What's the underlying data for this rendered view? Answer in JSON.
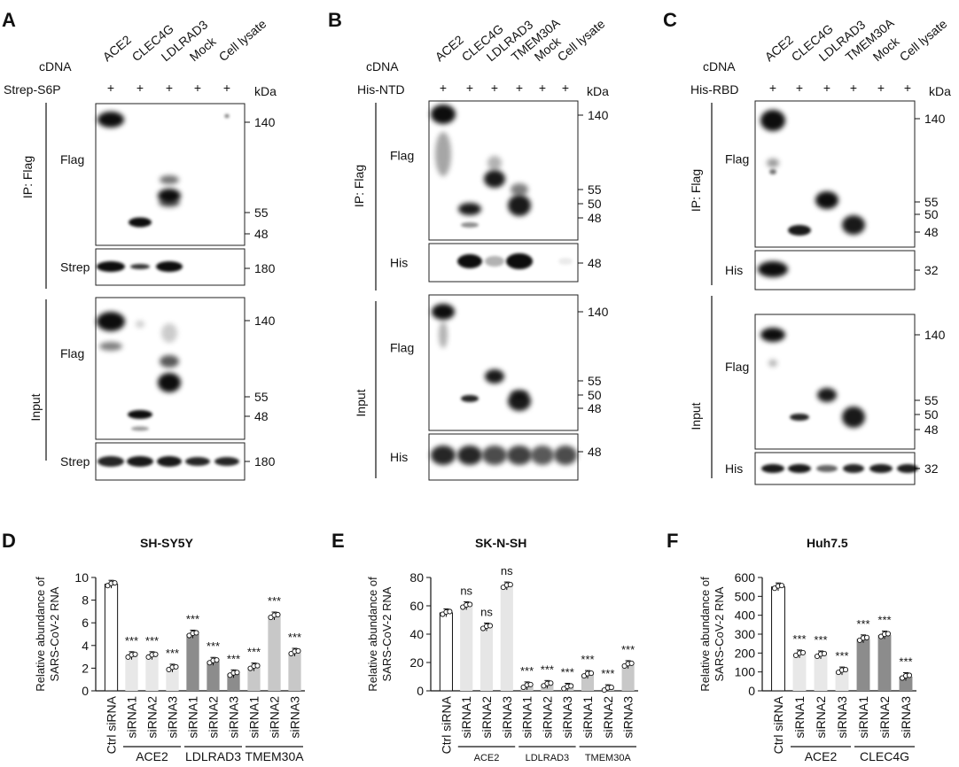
{
  "panels": {
    "A": {
      "letter": "A",
      "cdna_label": "cDNA",
      "bait_label": "Strep-S6P",
      "kda": "kDa",
      "lanes": [
        "ACE2",
        "CLEC4G",
        "LDLRAD3",
        "Mock",
        "Cell lysate"
      ],
      "plus": [
        "+",
        "+",
        "+",
        "+",
        "+"
      ],
      "ip_label": "IP: Flag",
      "input_label": "Input",
      "blots": [
        {
          "label": "Flag",
          "markers": [
            "140",
            "55",
            "48"
          ]
        },
        {
          "label": "Strep",
          "markers": [
            "180"
          ]
        },
        {
          "label": "Flag",
          "markers": [
            "140",
            "55",
            "48"
          ]
        },
        {
          "label": "Strep",
          "markers": [
            "180"
          ]
        }
      ]
    },
    "B": {
      "letter": "B",
      "cdna_label": "cDNA",
      "bait_label": "His-NTD",
      "kda": "kDa",
      "lanes": [
        "ACE2",
        "CLEC4G",
        "LDLRAD3",
        "TMEM30A",
        "Mock",
        "Cell lysate"
      ],
      "plus": [
        "+",
        "+",
        "+",
        "+",
        "+",
        "+"
      ],
      "ip_label": "IP: Flag",
      "input_label": "Input",
      "blots": [
        {
          "label": "Flag",
          "markers": [
            "140",
            "55",
            "50",
            "48"
          ]
        },
        {
          "label": "His",
          "markers": [
            "48"
          ]
        },
        {
          "label": "Flag",
          "markers": [
            "140",
            "55",
            "50",
            "48"
          ]
        },
        {
          "label": "His",
          "markers": [
            "48"
          ]
        }
      ]
    },
    "C": {
      "letter": "C",
      "cdna_label": "cDNA",
      "bait_label": "His-RBD",
      "kda": "kDa",
      "lanes": [
        "ACE2",
        "CLEC4G",
        "LDLRAD3",
        "TMEM30A",
        "Mock",
        "Cell lysate"
      ],
      "plus": [
        "+",
        "+",
        "+",
        "+",
        "+",
        "+"
      ],
      "ip_label": "IP: Flag",
      "input_label": "Input",
      "blots": [
        {
          "label": "Flag",
          "markers": [
            "140",
            "55",
            "50",
            "48"
          ]
        },
        {
          "label": "His",
          "markers": [
            "32"
          ]
        },
        {
          "label": "Flag",
          "markers": [
            "140",
            "55",
            "50",
            "48"
          ]
        },
        {
          "label": "His",
          "markers": [
            "32"
          ]
        }
      ]
    }
  },
  "chart_data": [
    {
      "letter": "D",
      "type": "bar",
      "title": "SH-SY5Y",
      "ylabel_line1": "Relative abundance of",
      "ylabel_line2": "SARS-CoV-2 RNA",
      "ylim": [
        0,
        10
      ],
      "yticks": [
        "0",
        "2",
        "4",
        "6",
        "8",
        "10"
      ],
      "categories": [
        "Ctrl siRNA",
        "siRNA1",
        "siRNA2",
        "siRNA3",
        "siRNA1",
        "siRNA2",
        "siRNA3",
        "siRNA1",
        "siRNA2",
        "siRNA3"
      ],
      "values": [
        9.4,
        3.1,
        3.1,
        2.0,
        5.0,
        2.6,
        1.5,
        2.1,
        6.6,
        3.4
      ],
      "colors": [
        "#ffffff",
        "#e8e8e8",
        "#e8e8e8",
        "#e8e8e8",
        "#8c8c8c",
        "#8c8c8c",
        "#8c8c8c",
        "#c8c8c8",
        "#c8c8c8",
        "#c8c8c8"
      ],
      "significance": [
        "",
        "***",
        "***",
        "***",
        "***",
        "***",
        "***",
        "***",
        "***",
        "***"
      ],
      "groups": [
        {
          "name": "ACE2",
          "from": 1,
          "to": 3
        },
        {
          "name": "LDLRAD3",
          "from": 4,
          "to": 6
        },
        {
          "name": "TMEM30A",
          "from": 7,
          "to": 9
        }
      ]
    },
    {
      "letter": "E",
      "type": "bar",
      "title": "SK-N-SH",
      "ylabel_line1": "Relative abundance of",
      "ylabel_line2": "SARS-CoV-2 RNA",
      "ylim": [
        0,
        80
      ],
      "yticks": [
        "0",
        "20",
        "40",
        "60",
        "80"
      ],
      "categories": [
        "Ctrl siRNA",
        "siRNA1",
        "siRNA2",
        "siRNA3",
        "siRNA1",
        "siRNA2",
        "siRNA3",
        "siRNA1",
        "siRNA2",
        "siRNA3"
      ],
      "values": [
        55,
        60,
        45,
        74,
        3.5,
        4.5,
        2.5,
        11.5,
        1.5,
        18.5
      ],
      "colors": [
        "#ffffff",
        "#e6e6e6",
        "#e6e6e6",
        "#e6e6e6",
        "#c8c8c8",
        "#c8c8c8",
        "#c8c8c8",
        "#c8c8c8",
        "#c8c8c8",
        "#c8c8c8"
      ],
      "significance": [
        "",
        "ns",
        "ns",
        "ns",
        "***",
        "***",
        "***",
        "***",
        "***",
        "***"
      ],
      "groups": [
        {
          "name": "ACE2",
          "from": 1,
          "to": 3
        },
        {
          "name": "LDLRAD3",
          "from": 4,
          "to": 6
        },
        {
          "name": "TMEM30A",
          "from": 7,
          "to": 9
        }
      ]
    },
    {
      "letter": "F",
      "type": "bar",
      "title": "Huh7.5",
      "ylabel_line1": "Relative abundance of",
      "ylabel_line2": "SARS-CoV-2 RNA",
      "ylim": [
        0,
        600
      ],
      "yticks": [
        "0",
        "100",
        "200",
        "300",
        "400",
        "500",
        "600"
      ],
      "categories": [
        "Ctrl siRNA",
        "siRNA1",
        "siRNA2",
        "siRNA3",
        "siRNA1",
        "siRNA2",
        "siRNA3"
      ],
      "values": [
        550,
        195,
        190,
        105,
        275,
        295,
        75
      ],
      "colors": [
        "#ffffff",
        "#e8e8e8",
        "#e8e8e8",
        "#e8e8e8",
        "#8c8c8c",
        "#8c8c8c",
        "#8c8c8c"
      ],
      "significance": [
        "",
        "***",
        "***",
        "***",
        "***",
        "***",
        "***"
      ],
      "groups": [
        {
          "name": "ACE2",
          "from": 1,
          "to": 3
        },
        {
          "name": "CLEC4G",
          "from": 4,
          "to": 6
        }
      ]
    }
  ]
}
